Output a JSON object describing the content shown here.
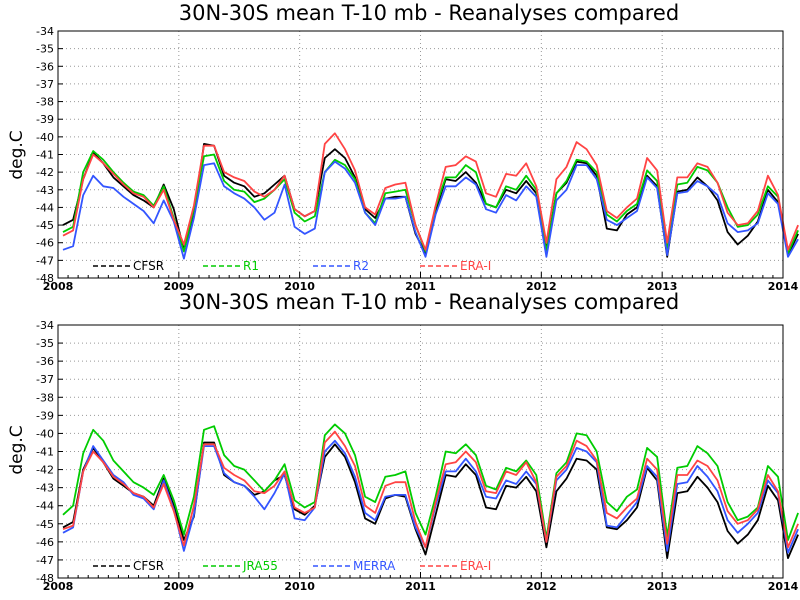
{
  "chart_data": [
    {
      "type": "line",
      "title": "30N-30S mean T-10 mb - Reanalyses compared",
      "ylabel": "deg.C",
      "xlabel": "",
      "ylim": [
        -48,
        -34
      ],
      "yticks": [
        -48,
        -47,
        -46,
        -45,
        -44,
        -43,
        -42,
        -41,
        -40,
        -39,
        -38,
        -37,
        -36,
        -35,
        -34
      ],
      "xticks": [
        "2008",
        "2009",
        "2010",
        "2011",
        "2012",
        "2013",
        "2014"
      ],
      "grid": true,
      "legend_position": "bottom-inside",
      "series": [
        {
          "name": "CFSR",
          "color": "#000000",
          "values": [
            -45.0,
            -44.7,
            -42.4,
            -40.9,
            -41.5,
            -42.3,
            -42.8,
            -43.3,
            -43.6,
            -44.0,
            -42.7,
            -44.1,
            -46.4,
            -44.5,
            -40.4,
            -40.5,
            -42.2,
            -42.6,
            -42.8,
            -43.4,
            -43.2,
            -42.7,
            -42.2,
            -44.1,
            -44.5,
            -44.2,
            -41.2,
            -40.7,
            -41.2,
            -42.3,
            -44.1,
            -44.6,
            -43.5,
            -43.4,
            -43.4,
            -45.5,
            -46.6,
            -44.2,
            -42.4,
            -42.5,
            -42.0,
            -42.6,
            -43.8,
            -44.0,
            -43.0,
            -43.2,
            -42.5,
            -43.2,
            -46.4,
            -43.2,
            -42.6,
            -41.4,
            -41.5,
            -42.2,
            -45.2,
            -45.3,
            -44.4,
            -44.0,
            -42.2,
            -42.8,
            -46.8,
            -43.1,
            -43.0,
            -42.3,
            -42.8,
            -43.6,
            -45.4,
            -46.1,
            -45.6,
            -44.8,
            -43.0,
            -43.7,
            -46.7,
            -45.5
          ]
        },
        {
          "name": "R1",
          "color": "#00cc00",
          "values": [
            -45.4,
            -45.1,
            -42.0,
            -40.8,
            -41.3,
            -42.0,
            -42.6,
            -43.1,
            -43.3,
            -43.9,
            -42.8,
            -44.6,
            -46.5,
            -44.1,
            -41.1,
            -41.0,
            -42.5,
            -43.0,
            -43.1,
            -43.7,
            -43.5,
            -43.0,
            -42.4,
            -44.3,
            -44.8,
            -44.5,
            -42.0,
            -41.3,
            -41.6,
            -42.4,
            -44.3,
            -44.9,
            -43.2,
            -43.1,
            -43.0,
            -45.0,
            -46.5,
            -44.0,
            -42.3,
            -42.3,
            -41.6,
            -42.0,
            -43.8,
            -44.0,
            -42.8,
            -43.0,
            -42.2,
            -43.0,
            -46.5,
            -43.2,
            -42.5,
            -41.3,
            -41.4,
            -42.0,
            -44.4,
            -44.8,
            -44.2,
            -43.8,
            -41.9,
            -42.5,
            -46.3,
            -42.7,
            -42.6,
            -41.7,
            -41.9,
            -42.6,
            -44.0,
            -45.1,
            -45.0,
            -44.4,
            -42.8,
            -43.4,
            -46.6,
            -45.3
          ]
        },
        {
          "name": "R2",
          "color": "#3355ff",
          "values": [
            -46.4,
            -46.2,
            -43.3,
            -42.2,
            -42.8,
            -42.9,
            -43.4,
            -43.8,
            -44.2,
            -44.9,
            -43.6,
            -44.8,
            -46.9,
            -44.6,
            -41.6,
            -41.5,
            -42.8,
            -43.2,
            -43.5,
            -44.0,
            -44.7,
            -44.3,
            -42.7,
            -45.1,
            -45.5,
            -45.2,
            -42.0,
            -41.4,
            -41.8,
            -42.6,
            -44.3,
            -45.0,
            -43.5,
            -43.5,
            -43.4,
            -45.4,
            -46.8,
            -44.4,
            -42.8,
            -42.8,
            -42.3,
            -42.7,
            -44.1,
            -44.3,
            -43.3,
            -43.6,
            -42.8,
            -43.4,
            -46.8,
            -43.6,
            -43.0,
            -41.6,
            -41.6,
            -42.4,
            -44.7,
            -45.0,
            -44.6,
            -44.2,
            -42.3,
            -42.9,
            -46.7,
            -43.2,
            -43.1,
            -42.5,
            -42.8,
            -43.3,
            -44.9,
            -45.4,
            -45.3,
            -44.9,
            -43.2,
            -43.8,
            -46.8,
            -45.8
          ]
        },
        {
          "name": "ERA-I",
          "color": "#ff4444",
          "values": [
            -45.6,
            -45.3,
            -42.4,
            -41.0,
            -41.5,
            -42.1,
            -42.7,
            -43.2,
            -43.4,
            -44.0,
            -43.0,
            -44.7,
            -46.1,
            -43.9,
            -40.5,
            -40.5,
            -42.0,
            -42.3,
            -42.5,
            -43.1,
            -43.4,
            -43.0,
            -42.2,
            -44.1,
            -44.5,
            -44.2,
            -40.4,
            -39.8,
            -40.7,
            -41.9,
            -44.0,
            -44.4,
            -42.9,
            -42.7,
            -42.6,
            -45.0,
            -46.4,
            -43.9,
            -41.7,
            -41.6,
            -41.1,
            -41.4,
            -43.2,
            -43.4,
            -42.1,
            -42.2,
            -41.5,
            -42.8,
            -46.0,
            -42.4,
            -41.7,
            -40.3,
            -40.7,
            -41.6,
            -44.2,
            -44.6,
            -44.0,
            -43.5,
            -41.2,
            -41.9,
            -46.0,
            -42.3,
            -42.3,
            -41.5,
            -41.7,
            -42.6,
            -44.3,
            -45.0,
            -44.9,
            -44.2,
            -42.2,
            -43.3,
            -46.4,
            -45.0
          ]
        }
      ],
      "legend": {
        "entries": [
          "CFSR",
          "R1",
          "R2",
          "ERA-I"
        ]
      }
    },
    {
      "type": "line",
      "title": "30N-30S mean T-10 mb - Reanalyses compared",
      "ylabel": "deg.C",
      "xlabel": "",
      "ylim": [
        -48,
        -34
      ],
      "yticks": [
        -48,
        -47,
        -46,
        -45,
        -44,
        -43,
        -42,
        -41,
        -40,
        -39,
        -38,
        -37,
        -36,
        -35,
        -34
      ],
      "xticks": [
        "2008",
        "2009",
        "2010",
        "2011",
        "2012",
        "2013",
        "2014"
      ],
      "grid": true,
      "legend_position": "bottom-inside",
      "series": [
        {
          "name": "CFSR",
          "color": "#000000",
          "values": [
            -45.2,
            -44.9,
            -42.0,
            -40.8,
            -41.6,
            -42.5,
            -42.9,
            -43.3,
            -43.5,
            -44.0,
            -42.5,
            -44.0,
            -45.9,
            -44.6,
            -40.5,
            -40.5,
            -42.3,
            -42.7,
            -42.9,
            -43.4,
            -43.2,
            -42.6,
            -42.3,
            -44.2,
            -44.5,
            -44.0,
            -41.3,
            -40.6,
            -41.3,
            -42.7,
            -44.7,
            -45.0,
            -43.6,
            -43.4,
            -43.5,
            -45.3,
            -46.7,
            -44.5,
            -42.3,
            -42.4,
            -41.7,
            -42.3,
            -44.1,
            -44.2,
            -42.9,
            -43.0,
            -42.4,
            -43.2,
            -46.3,
            -43.2,
            -42.5,
            -41.4,
            -41.5,
            -42.0,
            -45.2,
            -45.3,
            -44.8,
            -44.1,
            -41.9,
            -42.6,
            -46.9,
            -43.3,
            -43.2,
            -42.4,
            -43.0,
            -43.8,
            -45.4,
            -46.1,
            -45.6,
            -44.8,
            -42.9,
            -43.7,
            -46.9,
            -45.6
          ]
        },
        {
          "name": "JRA55",
          "color": "#00cc00",
          "values": [
            -44.5,
            -44.0,
            -41.1,
            -39.8,
            -40.4,
            -41.5,
            -42.1,
            -42.7,
            -43.0,
            -43.4,
            -42.3,
            -43.7,
            -45.6,
            -43.5,
            -39.8,
            -39.6,
            -41.2,
            -41.8,
            -42.0,
            -42.6,
            -43.2,
            -42.6,
            -41.7,
            -43.7,
            -44.1,
            -43.8,
            -40.1,
            -39.5,
            -40.0,
            -41.2,
            -43.5,
            -43.8,
            -42.4,
            -42.3,
            -42.1,
            -44.4,
            -45.6,
            -43.5,
            -41.0,
            -41.1,
            -40.6,
            -41.2,
            -42.9,
            -43.1,
            -41.9,
            -42.1,
            -41.5,
            -42.3,
            -45.8,
            -42.2,
            -41.6,
            -40.0,
            -40.1,
            -41.0,
            -43.8,
            -44.3,
            -43.5,
            -43.1,
            -40.8,
            -41.3,
            -45.7,
            -41.9,
            -41.8,
            -40.7,
            -41.1,
            -41.8,
            -43.8,
            -44.8,
            -44.6,
            -44.1,
            -41.8,
            -42.4,
            -45.9,
            -44.4
          ]
        },
        {
          "name": "MERRA",
          "color": "#3355ff",
          "values": [
            -45.5,
            -45.2,
            -42.1,
            -40.7,
            -41.5,
            -42.3,
            -42.7,
            -43.4,
            -43.6,
            -44.2,
            -42.6,
            -44.2,
            -46.5,
            -44.5,
            -40.7,
            -40.7,
            -42.2,
            -42.7,
            -42.9,
            -43.5,
            -44.2,
            -43.3,
            -42.2,
            -44.7,
            -44.8,
            -44.1,
            -41.0,
            -40.4,
            -41.1,
            -42.4,
            -44.4,
            -44.8,
            -43.5,
            -43.4,
            -43.4,
            -45.2,
            -46.3,
            -44.0,
            -42.1,
            -42.1,
            -41.4,
            -42.1,
            -43.5,
            -43.6,
            -42.6,
            -42.8,
            -42.1,
            -42.8,
            -46.0,
            -42.6,
            -42.0,
            -40.8,
            -41.0,
            -41.6,
            -45.1,
            -45.2,
            -44.5,
            -43.8,
            -41.8,
            -42.4,
            -46.5,
            -42.8,
            -42.7,
            -41.8,
            -42.4,
            -43.2,
            -44.8,
            -45.5,
            -45.0,
            -44.4,
            -42.6,
            -43.3,
            -46.6,
            -45.3
          ]
        },
        {
          "name": "ERA-I",
          "color": "#ff4444",
          "values": [
            -45.3,
            -45.1,
            -42.1,
            -41.0,
            -41.6,
            -42.4,
            -42.8,
            -43.3,
            -43.5,
            -44.1,
            -42.8,
            -44.3,
            -46.2,
            -44.0,
            -40.6,
            -40.6,
            -41.9,
            -42.3,
            -42.6,
            -43.2,
            -43.3,
            -42.9,
            -42.1,
            -44.1,
            -44.4,
            -44.1,
            -40.5,
            -39.9,
            -40.7,
            -41.8,
            -44.0,
            -44.4,
            -42.9,
            -42.7,
            -42.7,
            -44.9,
            -46.3,
            -43.8,
            -41.7,
            -41.6,
            -41.0,
            -41.6,
            -43.2,
            -43.3,
            -42.1,
            -42.3,
            -41.6,
            -42.7,
            -46.0,
            -42.4,
            -41.8,
            -40.4,
            -40.7,
            -41.5,
            -44.4,
            -44.7,
            -44.1,
            -43.6,
            -41.4,
            -42.0,
            -46.1,
            -42.3,
            -42.3,
            -41.5,
            -41.8,
            -42.6,
            -44.3,
            -45.0,
            -44.8,
            -44.2,
            -42.3,
            -43.2,
            -46.3,
            -45.0
          ]
        }
      ],
      "legend": {
        "entries": [
          "CFSR",
          "JRA55",
          "MERRA",
          "ERA-I"
        ]
      }
    }
  ]
}
